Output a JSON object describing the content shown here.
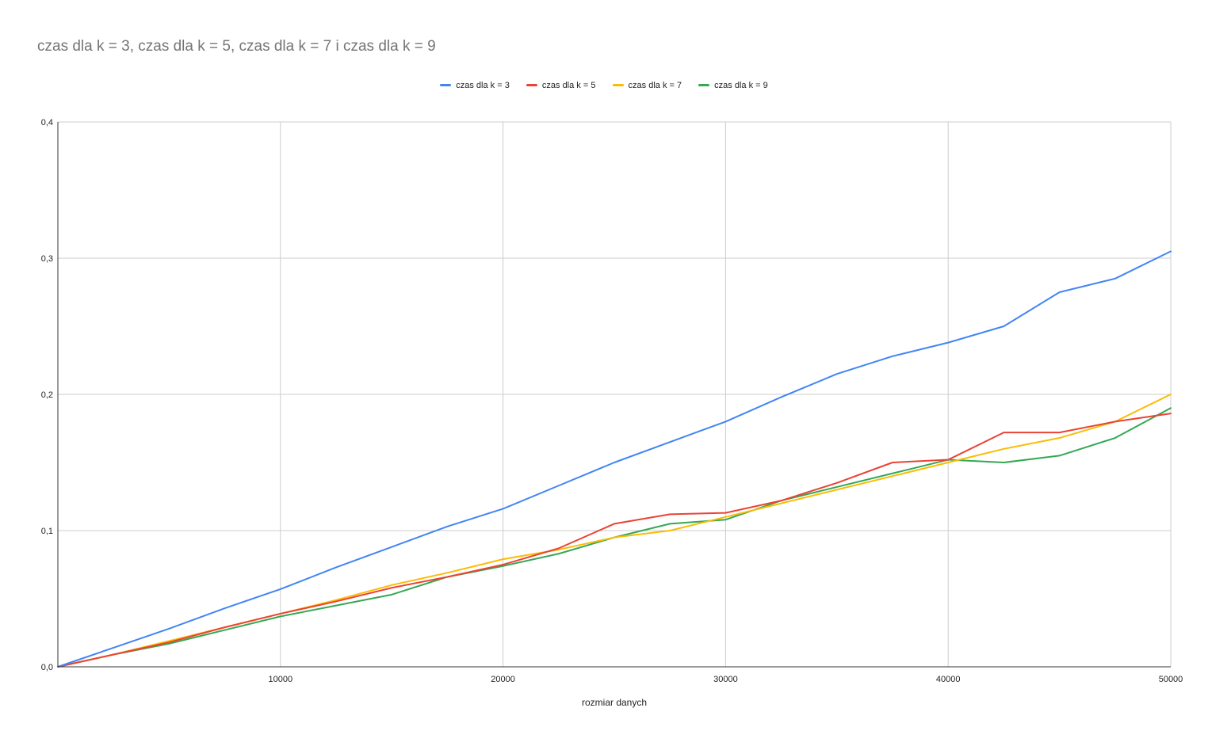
{
  "chart_data": {
    "type": "line",
    "title": "czas dla k = 3, czas dla k = 5, czas dla k = 7 i czas dla k = 9",
    "xlabel": "rozmiar danych",
    "ylabel": "",
    "xlim": [
      0,
      50000
    ],
    "ylim": [
      0,
      0.4
    ],
    "x_ticks": [
      "10000",
      "20000",
      "30000",
      "40000",
      "50000"
    ],
    "y_ticks": [
      "0,0",
      "0,1",
      "0,2",
      "0,3",
      "0,4"
    ],
    "grid": true,
    "legend_position": "top",
    "x": [
      0,
      2500,
      5000,
      7500,
      10000,
      12500,
      15000,
      17500,
      20000,
      22500,
      25000,
      27500,
      30000,
      32500,
      35000,
      37500,
      40000,
      42500,
      45000,
      47500,
      50000
    ],
    "series": [
      {
        "name": "czas dla k = 3",
        "color": "#4285f4",
        "values": [
          0.0,
          0.014,
          0.028,
          0.043,
          0.057,
          0.073,
          0.088,
          0.103,
          0.116,
          0.133,
          0.15,
          0.165,
          0.18,
          0.198,
          0.215,
          0.228,
          0.238,
          0.25,
          0.275,
          0.285,
          0.305
        ]
      },
      {
        "name": "czas dla k = 5",
        "color": "#ea4335",
        "values": [
          0.0,
          0.009,
          0.018,
          0.029,
          0.039,
          0.048,
          0.058,
          0.066,
          0.075,
          0.087,
          0.105,
          0.112,
          0.113,
          0.122,
          0.135,
          0.15,
          0.152,
          0.172,
          0.172,
          0.18,
          0.186
        ]
      },
      {
        "name": "czas dla k = 7",
        "color": "#fbbc04",
        "values": [
          0.0,
          0.009,
          0.019,
          0.029,
          0.039,
          0.049,
          0.06,
          0.069,
          0.079,
          0.086,
          0.095,
          0.1,
          0.11,
          0.12,
          0.13,
          0.14,
          0.15,
          0.16,
          0.168,
          0.18,
          0.2
        ]
      },
      {
        "name": "czas dla k = 9",
        "color": "#34a853",
        "values": [
          0.0,
          0.009,
          0.017,
          0.027,
          0.037,
          0.045,
          0.053,
          0.066,
          0.074,
          0.083,
          0.095,
          0.105,
          0.108,
          0.122,
          0.132,
          0.142,
          0.152,
          0.15,
          0.155,
          0.168,
          0.19
        ]
      }
    ]
  }
}
